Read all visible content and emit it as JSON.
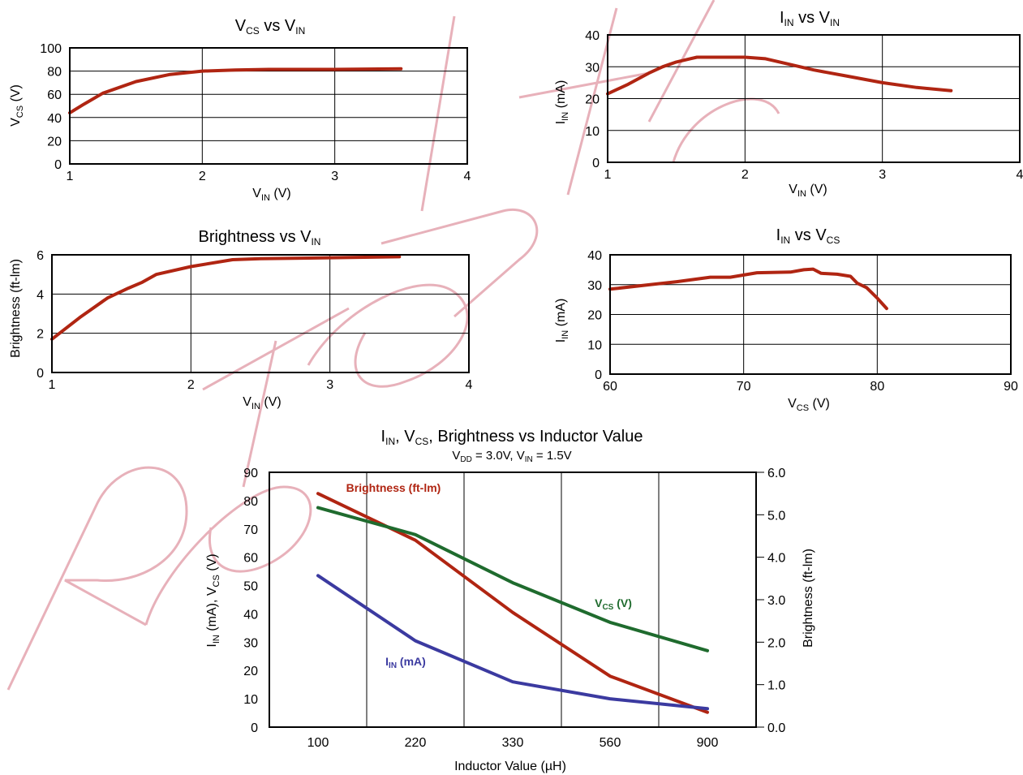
{
  "watermark": "Refer to Datasheet",
  "charts": {
    "vcs_vs_vin": {
      "title_main": "V",
      "title_sub1": "CS",
      "title_mid": " vs V",
      "title_sub2": "IN",
      "ylabel_main": "V",
      "ylabel_sub": "CS",
      "ylabel_unit": " (V)",
      "xlabel_main": "V",
      "xlabel_sub": "IN",
      "xlabel_unit": " (V)"
    },
    "iin_vs_vin": {
      "title_main": "I",
      "title_sub1": "IN",
      "title_mid": " vs V",
      "title_sub2": "IN",
      "ylabel_main": "I",
      "ylabel_sub": "IN",
      "ylabel_unit": " (mA)",
      "xlabel_main": "V",
      "xlabel_sub": "IN",
      "xlabel_unit": " (V)"
    },
    "bright_vs_vin": {
      "title_main": "Brightness vs V",
      "title_sub1": "IN",
      "ylabel": "Brightness (ft-lm)",
      "xlabel_main": "V",
      "xlabel_sub": "IN",
      "xlabel_unit": " (V)"
    },
    "iin_vs_vcs": {
      "title_main": "I",
      "title_sub1": "IN",
      "title_mid": " vs V",
      "title_sub2": "CS",
      "ylabel_main": "I",
      "ylabel_sub": "IN",
      "ylabel_unit": " (mA)",
      "xlabel_main": "V",
      "xlabel_sub": "CS",
      "xlabel_unit": " (V)"
    },
    "inductor": {
      "title_main": "I",
      "title_sub1": "IN",
      "title_mid1": ", V",
      "title_sub2": "CS",
      "title_mid2": ", Brightness vs Inductor Value",
      "subtitle_a": "V",
      "subtitle_a_sub": "DD",
      "subtitle_b": " = 3.0V, V",
      "subtitle_b_sub": "IN",
      "subtitle_c": " = 1.5V",
      "ylabel_a": "I",
      "ylabel_a_sub": "IN",
      "ylabel_b": " (mA),  V",
      "ylabel_b_sub": "CS",
      "ylabel_c": " (V)",
      "y2label": "Brightness (ft-lm)",
      "xlabel": "Inductor Value (µH)",
      "label_bright": "Brightness (ft-lm)",
      "label_vcs_main": "V",
      "label_vcs_sub": "CS",
      "label_vcs_unit": " (V)",
      "label_iin_main": "I",
      "label_iin_sub": "IN",
      "label_iin_unit": " (mA)"
    }
  },
  "chart_data": [
    {
      "type": "line",
      "id": "vcs_vs_vin",
      "xlim": [
        1,
        4
      ],
      "ylim": [
        0,
        100
      ],
      "xticks": [
        "1",
        "2",
        "3",
        "4"
      ],
      "yticks": [
        "0",
        "20",
        "40",
        "60",
        "80",
        "100"
      ],
      "grid": true,
      "series": [
        {
          "color": "#b02512",
          "x": [
            1.0,
            1.1,
            1.25,
            1.5,
            1.75,
            2.0,
            2.25,
            2.5,
            3.0,
            3.5
          ],
          "y": [
            44,
            51,
            61,
            71,
            77,
            80,
            81,
            81.5,
            81.5,
            82
          ]
        }
      ]
    },
    {
      "type": "line",
      "id": "iin_vs_vin",
      "xlim": [
        1,
        4
      ],
      "ylim": [
        0,
        40
      ],
      "xticks": [
        "1",
        "2",
        "3",
        "4"
      ],
      "yticks": [
        "0",
        "10",
        "20",
        "30",
        "40"
      ],
      "grid": true,
      "series": [
        {
          "color": "#b02512",
          "x": [
            1.0,
            1.15,
            1.3,
            1.4,
            1.5,
            1.6,
            1.65,
            1.8,
            2.0,
            2.15,
            2.3,
            2.5,
            2.75,
            3.0,
            3.25,
            3.5
          ],
          "y": [
            21.5,
            24.5,
            28,
            30,
            31.5,
            32.5,
            33,
            33,
            33,
            32.5,
            31,
            29,
            27,
            25,
            23.5,
            22.5
          ]
        }
      ]
    },
    {
      "type": "line",
      "id": "bright_vs_vin",
      "xlim": [
        1,
        4
      ],
      "ylim": [
        0,
        6
      ],
      "xticks": [
        "1",
        "2",
        "3",
        "4"
      ],
      "yticks": [
        "0",
        "2",
        "4",
        "6"
      ],
      "grid": true,
      "series": [
        {
          "color": "#b02512",
          "x": [
            1.0,
            1.2,
            1.4,
            1.55,
            1.65,
            1.75,
            2.0,
            2.3,
            2.5,
            3.0,
            3.5
          ],
          "y": [
            1.7,
            2.8,
            3.8,
            4.3,
            4.6,
            5.0,
            5.4,
            5.75,
            5.8,
            5.85,
            5.9
          ]
        }
      ]
    },
    {
      "type": "line",
      "id": "iin_vs_vcs",
      "xlim": [
        60,
        90
      ],
      "ylim": [
        0,
        40
      ],
      "xticks": [
        "60",
        "70",
        "80",
        "90"
      ],
      "yticks": [
        "0",
        "10",
        "20",
        "30",
        "40"
      ],
      "grid": true,
      "series": [
        {
          "color": "#b02512",
          "x": [
            60,
            63,
            65,
            67.5,
            69,
            71,
            73.5,
            74.5,
            75.2,
            75.8,
            77,
            78,
            78.5,
            79.2,
            80,
            80.4,
            80.7
          ],
          "y": [
            28.5,
            30,
            31,
            32.5,
            32.5,
            34,
            34.2,
            35,
            35.2,
            33.8,
            33.5,
            32.8,
            30.5,
            29,
            25.5,
            23.5,
            22
          ]
        }
      ]
    },
    {
      "type": "line",
      "id": "inductor",
      "categories": [
        "100",
        "220",
        "330",
        "560",
        "900"
      ],
      "ylim": [
        0,
        90
      ],
      "yticks": [
        "0",
        "10",
        "20",
        "30",
        "40",
        "50",
        "60",
        "70",
        "80",
        "90"
      ],
      "y2lim": [
        0,
        6
      ],
      "y2ticks": [
        "0.0",
        "1.0",
        "2.0",
        "3.0",
        "4.0",
        "5.0",
        "6.0"
      ],
      "grid": true,
      "series": [
        {
          "name": "Brightness (ft-lm)",
          "axis": "right",
          "color": "#b02512",
          "values": [
            5.5,
            4.4,
            2.7,
            1.2,
            0.35
          ]
        },
        {
          "name": "VCS (V)",
          "axis": "left",
          "color": "#1f6b2e",
          "values": [
            77.5,
            68,
            51,
            37,
            27
          ]
        },
        {
          "name": "IIN (mA)",
          "axis": "left",
          "color": "#3b3aa0",
          "values": [
            53.5,
            30.5,
            16,
            10,
            6.5
          ]
        }
      ]
    }
  ]
}
